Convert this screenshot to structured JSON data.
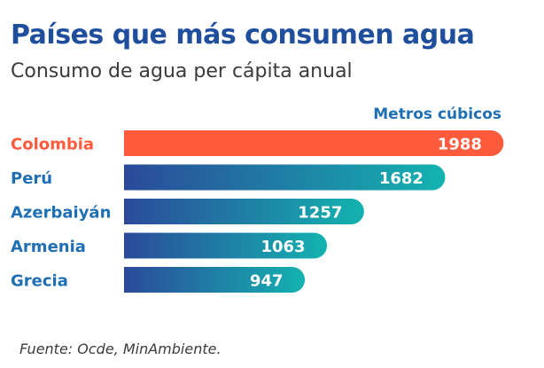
{
  "chart_data": {
    "type": "bar",
    "orientation": "horizontal",
    "title": "Países que más consumen agua",
    "subtitle": "Consumo de agua per cápita anual",
    "unit_label": "Metros cúbicos",
    "source": "Fuente: Ocde, MinAmbiente.",
    "categories": [
      "Colombia",
      "Perú",
      "Azerbaiyán",
      "Armenia",
      "Grecia"
    ],
    "values": [
      1988,
      1682,
      1257,
      1063,
      947
    ],
    "xlim": [
      0,
      2000
    ],
    "highlight_category": "Colombia",
    "colors": {
      "title": "#1f4e9c",
      "highlight": "#ff5a3c",
      "gradient_start": "#2b4a9a",
      "gradient_end": "#13b3b0",
      "label_default": "#1f6fb5"
    }
  }
}
